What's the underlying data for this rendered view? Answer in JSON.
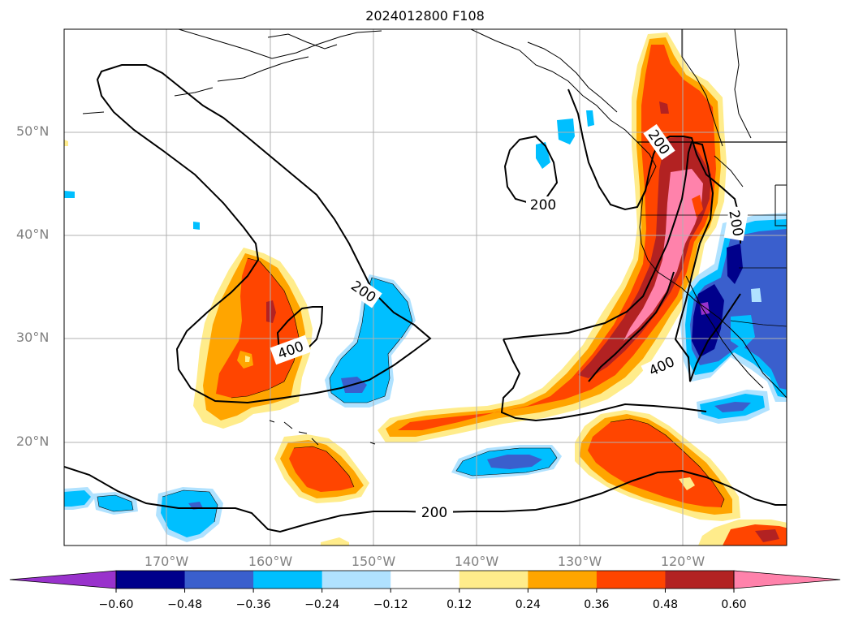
{
  "title": "2024012800 F108",
  "lat_labels": [
    "50°N",
    "40°N",
    "30°N",
    "20°N"
  ],
  "lon_labels": [
    "170°W",
    "160°W",
    "150°W",
    "140°W",
    "130°W",
    "120°W"
  ],
  "contour_labels": [
    "200",
    "200",
    "200",
    "200",
    "400",
    "400",
    "200"
  ],
  "colorbar": {
    "levels": [
      "−0.60",
      "−0.48",
      "−0.36",
      "−0.24",
      "−0.12",
      "0.12",
      "0.24",
      "0.36",
      "0.48",
      "0.60"
    ],
    "colors": [
      "#9932cc",
      "#00008b",
      "#3a5fcd",
      "#00bfff",
      "#b0e2ff",
      "#ffffff",
      "#ffec8b",
      "#ffa500",
      "#ff4500",
      "#b22222",
      "#ff82ab"
    ]
  },
  "palette": {
    "neg_violet": "#9932cc",
    "neg_navy": "#00008b",
    "neg_blue": "#3a5fcd",
    "neg_sky": "#00bfff",
    "neg_light": "#b0e2ff",
    "pos_yellow": "#ffec8b",
    "pos_orange": "#ffa500",
    "pos_red": "#ff4500",
    "pos_firebrick": "#b22222",
    "pos_pink": "#ff82ab"
  }
}
